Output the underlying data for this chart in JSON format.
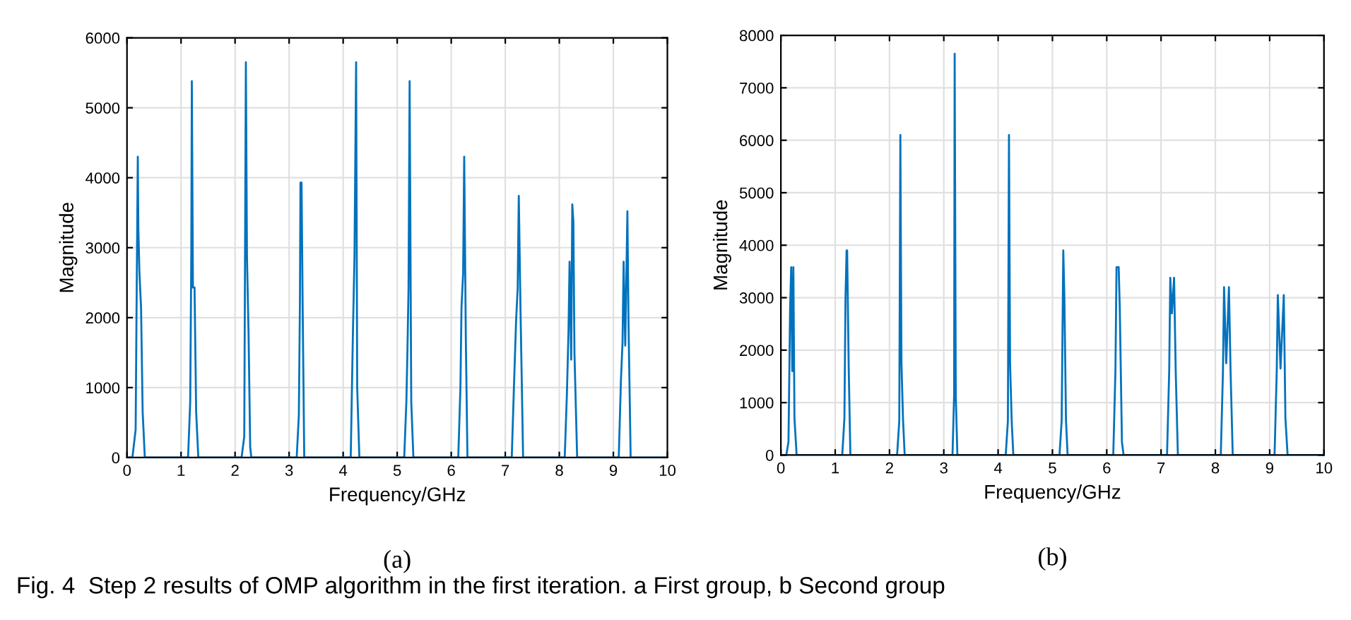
{
  "chart_data": [
    {
      "type": "line",
      "xlabel": "Frequency/GHz",
      "ylabel": "Magnitude",
      "subtitle": "(a)",
      "color": "#0072bd",
      "grid": true,
      "xlim": [
        0,
        10
      ],
      "xticks": [
        0,
        1,
        2,
        3,
        4,
        5,
        6,
        7,
        8,
        9,
        10
      ],
      "ylim": [
        0,
        6000
      ],
      "yticks": [
        0,
        1000,
        2000,
        3000,
        4000,
        5000,
        6000
      ],
      "x": [
        0,
        0.1,
        0.16,
        0.18,
        0.2,
        0.21,
        0.23,
        0.26,
        0.29,
        0.33,
        1.13,
        1.17,
        1.19,
        1.2,
        1.22,
        1.25,
        1.28,
        1.32,
        2.12,
        2.17,
        2.2,
        2.22,
        2.25,
        2.28,
        2.3,
        3.14,
        3.18,
        3.2,
        3.21,
        3.23,
        3.25,
        3.28,
        4.14,
        4.18,
        4.21,
        4.24,
        4.26,
        4.3,
        5.13,
        5.17,
        5.19,
        5.21,
        5.23,
        5.26,
        5.3,
        6.13,
        6.17,
        6.19,
        6.22,
        6.24,
        6.27,
        6.3,
        7.12,
        7.16,
        7.2,
        7.23,
        7.25,
        7.28,
        7.33,
        8.1,
        8.14,
        8.17,
        8.19,
        8.22,
        8.24,
        8.26,
        8.28,
        8.33,
        9.1,
        9.14,
        9.17,
        9.19,
        9.22,
        9.26,
        9.28,
        9.32,
        10
      ],
      "values": [
        0,
        0,
        400,
        2430,
        4300,
        3280,
        2640,
        2150,
        650,
        0,
        0,
        800,
        2900,
        5380,
        2430,
        2430,
        650,
        0,
        0,
        300,
        5650,
        2880,
        1750,
        150,
        0,
        0,
        600,
        2200,
        3930,
        3930,
        2200,
        0,
        0,
        1750,
        2880,
        5650,
        1000,
        0,
        0,
        800,
        1550,
        2430,
        5380,
        800,
        0,
        0,
        1000,
        2150,
        2630,
        4300,
        1700,
        0,
        0,
        1000,
        1950,
        2430,
        3740,
        2200,
        0,
        0,
        900,
        1800,
        2800,
        1400,
        3620,
        3380,
        1500,
        0,
        0,
        1100,
        1650,
        2800,
        1600,
        3520,
        1950,
        0,
        0
      ],
      "annotations": [
        "Fig. 4  Step 2 results of OMP algorithm in the first iteration. a First group, b Second group"
      ]
    },
    {
      "type": "line",
      "xlabel": "Frequency/GHz",
      "ylabel": "Magnitude",
      "subtitle": "(b)",
      "color": "#0072bd",
      "grid": true,
      "xlim": [
        0,
        10
      ],
      "xticks": [
        0,
        1,
        2,
        3,
        4,
        5,
        6,
        7,
        8,
        9,
        10
      ],
      "ylim": [
        0,
        8000
      ],
      "yticks": [
        0,
        1000,
        2000,
        3000,
        4000,
        5000,
        6000,
        7000,
        8000
      ],
      "x": [
        0,
        0.1,
        0.14,
        0.17,
        0.19,
        0.21,
        0.23,
        0.25,
        0.29,
        1.13,
        1.17,
        1.19,
        1.21,
        1.22,
        1.25,
        1.28,
        2.14,
        2.18,
        2.2,
        2.22,
        2.25,
        2.28,
        3.16,
        3.19,
        3.2,
        3.22,
        3.25,
        4.14,
        4.18,
        4.2,
        4.22,
        4.25,
        4.28,
        5.13,
        5.17,
        5.2,
        5.22,
        5.25,
        5.28,
        6.12,
        6.16,
        6.18,
        6.22,
        6.24,
        6.28,
        6.31,
        7.11,
        7.15,
        7.17,
        7.2,
        7.24,
        7.27,
        7.31,
        8.1,
        8.14,
        8.16,
        8.2,
        8.25,
        8.28,
        8.32,
        9.09,
        9.13,
        9.15,
        9.2,
        9.26,
        9.29,
        9.33,
        10
      ],
      "values": [
        0,
        0,
        250,
        2800,
        3580,
        1600,
        3580,
        700,
        0,
        0,
        700,
        3000,
        3900,
        3900,
        1600,
        0,
        0,
        650,
        6100,
        1750,
        650,
        0,
        0,
        1150,
        7650,
        1150,
        0,
        0,
        650,
        6100,
        1750,
        650,
        0,
        0,
        650,
        3900,
        3000,
        650,
        0,
        0,
        1600,
        3580,
        3580,
        2800,
        250,
        0,
        0,
        1600,
        3380,
        2700,
        3380,
        1600,
        0,
        0,
        1600,
        3200,
        1750,
        3200,
        1600,
        0,
        0,
        1600,
        3050,
        1650,
        3050,
        700,
        0,
        0
      ]
    }
  ]
}
